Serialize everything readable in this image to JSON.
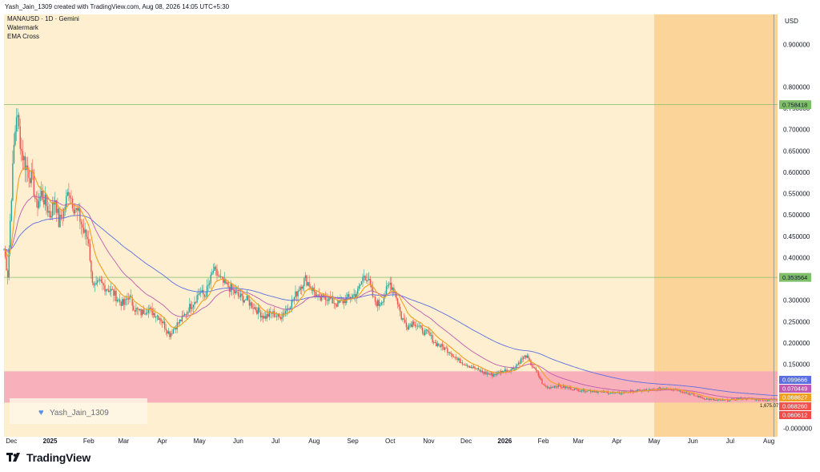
{
  "header": {
    "text": "Yash_Jain_1309 created with TradingView.com, Aug 08, 2026 14:05 UTC+5:30"
  },
  "legend": {
    "symbol_line": "MANAUSD · 1D · Gemini",
    "watermark_label": "Watermark",
    "indicator_label": "EMA Cross"
  },
  "watermark_text": "Yash_Jain_1309",
  "footer": {
    "brand": "TradingView"
  },
  "colors": {
    "background": "#fdefcf",
    "zone_highlight": "#fbd49a",
    "pink_zone": "#f7a8b8",
    "hline_green": "#7fbf6a",
    "ema_fast": "#f0a020",
    "ema_slow": "#c05ab0",
    "ma_long": "#5b6ee1",
    "candle_up": "#26a69a",
    "candle_down": "#ef5350"
  },
  "chart_data": {
    "type": "line",
    "symbol": "MANAUSD",
    "interval": "1D",
    "exchange": "Gemini",
    "currency_label": "USD",
    "ylim": [
      -0.02,
      0.97
    ],
    "y_ticks": [
      0.9,
      0.8,
      0.75,
      0.7,
      0.65,
      0.6,
      0.55,
      0.5,
      0.45,
      0.4,
      0.3,
      0.25,
      0.2,
      0.15,
      0.0
    ],
    "y_tick_labels": [
      "0.900000",
      "0.800000",
      "0.750000",
      "0.700000",
      "0.650000",
      "0.600000",
      "0.550000",
      "0.500000",
      "0.450000",
      "0.400000",
      "0.300000",
      "0.250000",
      "0.200000",
      "0.150000",
      "-0.000000"
    ],
    "x_range": [
      "2024-11-25",
      "2026-08-08"
    ],
    "x_ticks": [
      {
        "date": "2024-12-01",
        "label": "Dec"
      },
      {
        "date": "2025-01-01",
        "label": "2025"
      },
      {
        "date": "2025-02-01",
        "label": "Feb"
      },
      {
        "date": "2025-03-01",
        "label": "Mar"
      },
      {
        "date": "2025-04-01",
        "label": "Apr"
      },
      {
        "date": "2025-05-01",
        "label": "May"
      },
      {
        "date": "2025-06-01",
        "label": "Jun"
      },
      {
        "date": "2025-07-01",
        "label": "Jul"
      },
      {
        "date": "2025-08-01",
        "label": "Aug"
      },
      {
        "date": "2025-09-01",
        "label": "Sep"
      },
      {
        "date": "2025-10-01",
        "label": "Oct"
      },
      {
        "date": "2025-11-01",
        "label": "Nov"
      },
      {
        "date": "2025-12-01",
        "label": "Dec"
      },
      {
        "date": "2026-01-01",
        "label": "2026"
      },
      {
        "date": "2026-02-01",
        "label": "Feb"
      },
      {
        "date": "2026-03-01",
        "label": "Mar"
      },
      {
        "date": "2026-04-01",
        "label": "Apr"
      },
      {
        "date": "2026-05-01",
        "label": "May"
      },
      {
        "date": "2026-06-01",
        "label": "Jun"
      },
      {
        "date": "2026-07-01",
        "label": "Jul"
      },
      {
        "date": "2026-08-01",
        "label": "Aug"
      }
    ],
    "horizontal_lines": [
      {
        "value": 0.758418,
        "label": "0.758418"
      },
      {
        "value": 0.353564,
        "label": "0.353564"
      }
    ],
    "highlight_zone": {
      "from": "2026-05-01",
      "to": "2026-08-08"
    },
    "pink_zone": {
      "from_value": 0.06,
      "to_value": 0.1333
    },
    "price_badges": [
      {
        "label": "0.099666",
        "color": "#5b6ee1"
      },
      {
        "label": "0.070449",
        "color": "#c05ab0"
      },
      {
        "label": "0.068627",
        "color": "#f0a020"
      },
      {
        "label": "0.068260",
        "color": "#ef5350"
      },
      {
        "label": "0.060612",
        "color": "#f04a4a"
      }
    ],
    "annotation": "1,675.07",
    "series": [
      {
        "type": "close",
        "points": [
          [
            "2024-11-25",
            0.42
          ],
          [
            "2024-11-28",
            0.36
          ],
          [
            "2024-12-01",
            0.55
          ],
          [
            "2024-12-03",
            0.66
          ],
          [
            "2024-12-05",
            0.74
          ],
          [
            "2024-12-07",
            0.7
          ],
          [
            "2024-12-09",
            0.65
          ],
          [
            "2024-12-12",
            0.62
          ],
          [
            "2024-12-15",
            0.6
          ],
          [
            "2024-12-18",
            0.58
          ],
          [
            "2024-12-21",
            0.52
          ],
          [
            "2024-12-25",
            0.55
          ],
          [
            "2024-12-28",
            0.53
          ],
          [
            "2025-01-01",
            0.5
          ],
          [
            "2025-01-05",
            0.54
          ],
          [
            "2025-01-08",
            0.48
          ],
          [
            "2025-01-12",
            0.51
          ],
          [
            "2025-01-16",
            0.56
          ],
          [
            "2025-01-20",
            0.52
          ],
          [
            "2025-01-24",
            0.5
          ],
          [
            "2025-01-28",
            0.46
          ],
          [
            "2025-02-01",
            0.44
          ],
          [
            "2025-02-03",
            0.36
          ],
          [
            "2025-02-06",
            0.33
          ],
          [
            "2025-02-10",
            0.34
          ],
          [
            "2025-02-15",
            0.33
          ],
          [
            "2025-02-20",
            0.32
          ],
          [
            "2025-02-25",
            0.3
          ],
          [
            "2025-03-01",
            0.29
          ],
          [
            "2025-03-05",
            0.31
          ],
          [
            "2025-03-10",
            0.28
          ],
          [
            "2025-03-15",
            0.27
          ],
          [
            "2025-03-20",
            0.28
          ],
          [
            "2025-03-25",
            0.27
          ],
          [
            "2025-03-30",
            0.26
          ],
          [
            "2025-04-03",
            0.24
          ],
          [
            "2025-04-07",
            0.22
          ],
          [
            "2025-04-12",
            0.24
          ],
          [
            "2025-04-18",
            0.26
          ],
          [
            "2025-04-22",
            0.28
          ],
          [
            "2025-04-27",
            0.3
          ],
          [
            "2025-05-01",
            0.32
          ],
          [
            "2025-05-05",
            0.31
          ],
          [
            "2025-05-09",
            0.34
          ],
          [
            "2025-05-12",
            0.37
          ],
          [
            "2025-05-15",
            0.36
          ],
          [
            "2025-05-20",
            0.34
          ],
          [
            "2025-05-25",
            0.33
          ],
          [
            "2025-06-01",
            0.31
          ],
          [
            "2025-06-08",
            0.3
          ],
          [
            "2025-06-15",
            0.28
          ],
          [
            "2025-06-22",
            0.26
          ],
          [
            "2025-06-28",
            0.27
          ],
          [
            "2025-07-04",
            0.26
          ],
          [
            "2025-07-10",
            0.28
          ],
          [
            "2025-07-15",
            0.3
          ],
          [
            "2025-07-20",
            0.33
          ],
          [
            "2025-07-25",
            0.35
          ],
          [
            "2025-08-01",
            0.32
          ],
          [
            "2025-08-05",
            0.3
          ],
          [
            "2025-08-10",
            0.31
          ],
          [
            "2025-08-15",
            0.3
          ],
          [
            "2025-08-20",
            0.29
          ],
          [
            "2025-08-25",
            0.3
          ],
          [
            "2025-09-01",
            0.31
          ],
          [
            "2025-09-05",
            0.32
          ],
          [
            "2025-09-10",
            0.36
          ],
          [
            "2025-09-13",
            0.35
          ],
          [
            "2025-09-18",
            0.3
          ],
          [
            "2025-09-22",
            0.29
          ],
          [
            "2025-09-26",
            0.31
          ],
          [
            "2025-10-01",
            0.34
          ],
          [
            "2025-10-05",
            0.32
          ],
          [
            "2025-10-10",
            0.26
          ],
          [
            "2025-10-15",
            0.24
          ],
          [
            "2025-10-20",
            0.25
          ],
          [
            "2025-10-26",
            0.23
          ],
          [
            "2025-11-01",
            0.22
          ],
          [
            "2025-11-06",
            0.2
          ],
          [
            "2025-11-12",
            0.19
          ],
          [
            "2025-11-18",
            0.18
          ],
          [
            "2025-11-24",
            0.16
          ],
          [
            "2025-12-01",
            0.15
          ],
          [
            "2025-12-08",
            0.14
          ],
          [
            "2025-12-15",
            0.13
          ],
          [
            "2025-12-22",
            0.125
          ],
          [
            "2026-01-01",
            0.135
          ],
          [
            "2026-01-08",
            0.14
          ],
          [
            "2026-01-14",
            0.16
          ],
          [
            "2026-01-18",
            0.17
          ],
          [
            "2026-01-22",
            0.15
          ],
          [
            "2026-01-27",
            0.13
          ],
          [
            "2026-02-01",
            0.1
          ],
          [
            "2026-02-05",
            0.095
          ],
          [
            "2026-02-12",
            0.1
          ],
          [
            "2026-02-20",
            0.095
          ],
          [
            "2026-03-01",
            0.09
          ],
          [
            "2026-03-10",
            0.088
          ],
          [
            "2026-03-20",
            0.085
          ],
          [
            "2026-04-01",
            0.082
          ],
          [
            "2026-04-10",
            0.085
          ],
          [
            "2026-04-20",
            0.088
          ],
          [
            "2026-05-01",
            0.09
          ],
          [
            "2026-05-10",
            0.095
          ],
          [
            "2026-05-20",
            0.09
          ],
          [
            "2026-06-01",
            0.078
          ],
          [
            "2026-06-10",
            0.07
          ],
          [
            "2026-06-20",
            0.065
          ],
          [
            "2026-07-01",
            0.066
          ],
          [
            "2026-07-10",
            0.07
          ],
          [
            "2026-07-20",
            0.068
          ],
          [
            "2026-08-01",
            0.066
          ],
          [
            "2026-08-08",
            0.068
          ]
        ]
      }
    ]
  }
}
